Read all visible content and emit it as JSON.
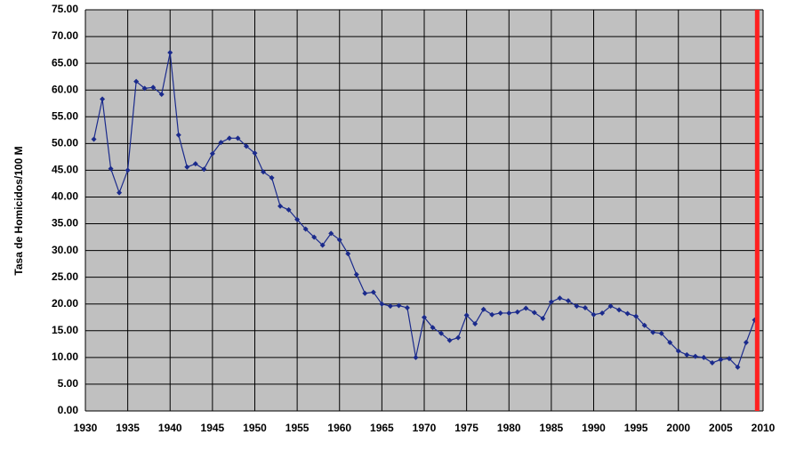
{
  "chart_data": {
    "type": "line",
    "y_label": "Tasa de Homicidos/100 M",
    "x": [
      1931,
      1932,
      1933,
      1934,
      1935,
      1936,
      1937,
      1938,
      1939,
      1940,
      1941,
      1942,
      1943,
      1944,
      1945,
      1946,
      1947,
      1948,
      1949,
      1950,
      1951,
      1952,
      1953,
      1954,
      1955,
      1956,
      1957,
      1958,
      1959,
      1960,
      1961,
      1962,
      1963,
      1964,
      1965,
      1966,
      1967,
      1968,
      1969,
      1970,
      1971,
      1972,
      1973,
      1974,
      1975,
      1976,
      1977,
      1978,
      1979,
      1980,
      1981,
      1982,
      1983,
      1984,
      1985,
      1986,
      1987,
      1988,
      1989,
      1990,
      1991,
      1992,
      1993,
      1994,
      1995,
      1996,
      1997,
      1998,
      1999,
      2000,
      2001,
      2002,
      2003,
      2004,
      2005,
      2006,
      2007,
      2008,
      2009
    ],
    "series": [
      {
        "color": "#1a2a8c",
        "values": [
          50.8,
          58.3,
          45.3,
          40.8,
          45,
          61.6,
          60.3,
          60.5,
          59.2,
          67,
          51.6,
          45.6,
          46.2,
          45.2,
          48.1,
          50.2,
          51,
          51,
          49.5,
          48.2,
          44.7,
          43.6,
          38.3,
          37.6,
          35.8,
          34,
          32.5,
          31,
          33.2,
          32,
          29.4,
          25.5,
          22,
          22.2,
          20,
          19.6,
          19.7,
          19.3,
          10,
          17.5,
          15.6,
          14.5,
          13.2,
          13.7,
          17.9,
          16.3,
          19,
          18,
          18.3,
          18.3,
          18.5,
          19.2,
          18.4,
          17.3,
          20.4,
          21.1,
          20.6,
          19.6,
          19.3,
          18,
          18.3,
          19.6,
          18.9,
          18.2,
          17.7,
          16,
          14.7,
          14.5,
          12.8,
          11.2,
          10.5,
          10.2,
          10,
          9,
          9.6,
          9.8,
          8.2,
          12.8,
          17
        ]
      }
    ],
    "xlim": [
      1930,
      2010
    ],
    "xticks": [
      1930,
      1935,
      1940,
      1945,
      1950,
      1955,
      1960,
      1965,
      1970,
      1975,
      1980,
      1985,
      1990,
      1995,
      2000,
      2005,
      2010
    ],
    "ylim": [
      0,
      75
    ],
    "yticks": [
      {
        "value": 0,
        "label": "0.00"
      },
      {
        "value": 5,
        "label": "5.00"
      },
      {
        "value": 10,
        "label": "10.00"
      },
      {
        "value": 15,
        "label": "15.00"
      },
      {
        "value": 20,
        "label": "20.00"
      },
      {
        "value": 25,
        "label": "25.00"
      },
      {
        "value": 30,
        "label": "30.00"
      },
      {
        "value": 35,
        "label": "35.00"
      },
      {
        "value": 40,
        "label": "40.00"
      },
      {
        "value": 45,
        "label": "45.00"
      },
      {
        "value": 50,
        "label": "50.00"
      },
      {
        "value": 55,
        "label": "55.00"
      },
      {
        "value": 60,
        "label": "60.00"
      },
      {
        "value": 65,
        "label": "65.00"
      },
      {
        "value": 70,
        "label": "70.00"
      },
      {
        "value": 75,
        "label": "75.00"
      }
    ],
    "grid": true,
    "reference_line": {
      "x": 2009.3,
      "color": "#ff2020"
    }
  }
}
